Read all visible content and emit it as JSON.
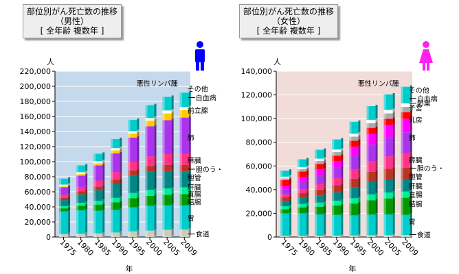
{
  "charts": [
    {
      "title_lines": [
        "部位別がん死亡数の推移",
        "（男性）",
        "[ 全年齢 複数年 ]"
      ],
      "y_unit": "人",
      "x_title": "年",
      "figure": "male",
      "figure_color": "#0000ff",
      "bg_color": "#c5d9ec",
      "ylim": [
        0,
        220000
      ],
      "y_ticks": [
        "0",
        "20,000",
        "40,000",
        "60,000",
        "80,000",
        "100,000",
        "120,000",
        "140,000",
        "160,000",
        "180,000",
        "200,000",
        "220,000"
      ],
      "labels": [
        {
          "text": "悪性リンパ腫",
          "y": 204000,
          "side": "left"
        },
        {
          "text": "その他",
          "y": 197000,
          "side": "right"
        },
        {
          "text": "白血病",
          "y": 185000,
          "side": "right",
          "leader": true
        },
        {
          "text": "前立腺",
          "y": 168000,
          "side": "right"
        },
        {
          "text": "肺",
          "y": 132000,
          "side": "right"
        },
        {
          "text": "膵臓",
          "y": 102000,
          "side": "right"
        },
        {
          "text": "胆のう・",
          "y": 90000,
          "side": "right",
          "leader": true
        },
        {
          "text": "胆管",
          "y": 79000,
          "side": "right"
        },
        {
          "text": "肝臓",
          "y": 66000,
          "side": "right"
        },
        {
          "text": "直腸",
          "y": 57000,
          "side": "right"
        },
        {
          "text": "結腸",
          "y": 47000,
          "side": "right"
        },
        {
          "text": "胃",
          "y": 25000,
          "side": "right"
        },
        {
          "text": "食道",
          "y": 4000,
          "side": "right",
          "leader": true
        }
      ]
    },
    {
      "title_lines": [
        "部位別がん死亡数の推移",
        "（女性）",
        "[ 全年齢 複数年 ]"
      ],
      "y_unit": "人",
      "x_title": "年",
      "figure": "female",
      "figure_color": "#ff22ee",
      "bg_color": "#f1dcda",
      "ylim": [
        0,
        140000
      ],
      "y_ticks": [
        "0",
        "20,000",
        "40,000",
        "60,000",
        "80,000",
        "100,000",
        "120,000",
        "140,000"
      ],
      "labels": [
        {
          "text": "悪性リンパ腫",
          "y": 130000,
          "side": "left"
        },
        {
          "text": "その他",
          "y": 124000,
          "side": "right"
        },
        {
          "text": "白血病",
          "y": 117000,
          "side": "right",
          "leader": true
        },
        {
          "text": "子宮",
          "y": 109000,
          "side": "right"
        },
        {
          "text": "卵巣",
          "y": 113000,
          "side": "right",
          "leader": true
        },
        {
          "text": "乳房",
          "y": 99000,
          "side": "right"
        },
        {
          "text": "肺",
          "y": 84000,
          "side": "right"
        },
        {
          "text": "膵臓",
          "y": 65000,
          "side": "right"
        },
        {
          "text": "胆のう・",
          "y": 58000,
          "side": "right",
          "leader": true
        },
        {
          "text": "胆管",
          "y": 51000,
          "side": "right"
        },
        {
          "text": "肝臓",
          "y": 43000,
          "side": "right"
        },
        {
          "text": "直腸",
          "y": 36000,
          "side": "right"
        },
        {
          "text": "結腸",
          "y": 28000,
          "side": "right"
        },
        {
          "text": "胃",
          "y": 13000,
          "side": "right"
        },
        {
          "text": "食道",
          "y": 2000,
          "side": "right",
          "leader": true
        }
      ]
    }
  ],
  "chart_data": [
    {
      "type": "bar",
      "stacked": true,
      "title": "部位別がん死亡数の推移（男性）[ 全年齢 複数年 ]",
      "xlabel": "年",
      "ylabel": "人",
      "ylim": [
        0,
        220000
      ],
      "grid": true,
      "categories": [
        "1975",
        "1980",
        "1985",
        "1990",
        "1995",
        "2000",
        "2005",
        "2009"
      ],
      "series": [
        {
          "name": "食道",
          "color": "#ccccbb",
          "values": [
            4000,
            4500,
            5000,
            6000,
            7500,
            8500,
            9500,
            10000
          ]
        },
        {
          "name": "胃",
          "color": "#00cccc",
          "values": [
            30000,
            31000,
            30000,
            30000,
            32000,
            33000,
            32500,
            32000
          ]
        },
        {
          "name": "結腸",
          "color": "#009900",
          "values": [
            4000,
            6000,
            8000,
            10000,
            12000,
            13000,
            14000,
            15000
          ]
        },
        {
          "name": "直腸",
          "color": "#00ee99",
          "values": [
            3000,
            4000,
            5000,
            6000,
            7000,
            8000,
            8500,
            9000
          ]
        },
        {
          "name": "肝臓",
          "color": "#008888",
          "values": [
            8000,
            11000,
            14000,
            18000,
            23000,
            24000,
            23000,
            21000
          ]
        },
        {
          "name": "胆管",
          "color": "#bb3322",
          "values": [
            3000,
            4000,
            5000,
            6000,
            7000,
            7500,
            8000,
            8500
          ]
        },
        {
          "name": "膵臓",
          "color": "#ff3388",
          "values": [
            4000,
            6000,
            8000,
            10000,
            11500,
            13000,
            14500,
            15000
          ]
        },
        {
          "name": "肺",
          "color": "#aa33ee",
          "values": [
            10000,
            15000,
            20000,
            25000,
            32000,
            40000,
            45000,
            48000
          ]
        },
        {
          "name": "前立腺",
          "color": "#ffcc00",
          "values": [
            1500,
            2000,
            3000,
            4000,
            5500,
            7500,
            9000,
            10000
          ]
        },
        {
          "name": "白血病",
          "color": "#ffffff",
          "values": [
            2000,
            2500,
            2500,
            3000,
            3000,
            3500,
            4000,
            4000
          ]
        },
        {
          "name": "その他",
          "color": "#00cccc",
          "values": [
            8000,
            9000,
            10000,
            12000,
            15000,
            17000,
            18000,
            19000
          ]
        }
      ]
    },
    {
      "type": "bar",
      "stacked": true,
      "title": "部位別がん死亡数の推移（女性）[ 全年齢 複数年 ]",
      "xlabel": "年",
      "ylabel": "人",
      "ylim": [
        0,
        140000
      ],
      "grid": true,
      "categories": [
        "1975",
        "1980",
        "1985",
        "1990",
        "1995",
        "2000",
        "2005",
        "2009"
      ],
      "series": [
        {
          "name": "食道",
          "color": "#ccccbb",
          "values": [
            1000,
            1000,
            1100,
            1200,
            1300,
            1500,
            1600,
            1700
          ]
        },
        {
          "name": "胃",
          "color": "#00cccc",
          "values": [
            19000,
            19000,
            18000,
            17500,
            17000,
            17500,
            17500,
            17000
          ]
        },
        {
          "name": "結腸",
          "color": "#009900",
          "values": [
            3500,
            5000,
            6500,
            8000,
            10000,
            12000,
            13500,
            14500
          ]
        },
        {
          "name": "直腸",
          "color": "#00ee99",
          "values": [
            2500,
            3000,
            3500,
            4000,
            4500,
            5000,
            5000,
            5200
          ]
        },
        {
          "name": "肝臓",
          "color": "#008888",
          "values": [
            4500,
            5000,
            6000,
            7000,
            9000,
            10500,
            11000,
            10500
          ]
        },
        {
          "name": "胆管",
          "color": "#bb3322",
          "values": [
            3000,
            4000,
            5000,
            6000,
            7500,
            8500,
            9000,
            9500
          ]
        },
        {
          "name": "膵臓",
          "color": "#ff3388",
          "values": [
            2500,
            3500,
            4500,
            6000,
            7500,
            9000,
            10500,
            12000
          ]
        },
        {
          "name": "肺",
          "color": "#aa33ee",
          "values": [
            4000,
            6000,
            7500,
            9000,
            12000,
            14000,
            16000,
            18000
          ]
        },
        {
          "name": "乳房",
          "color": "#ff00ff",
          "values": [
            3000,
            4000,
            5000,
            5500,
            7500,
            9000,
            10500,
            11500
          ]
        },
        {
          "name": "子宮",
          "color": "#ff0000",
          "values": [
            5000,
            4800,
            4600,
            4500,
            5000,
            5200,
            5300,
            5500
          ]
        },
        {
          "name": "卵巣",
          "color": "#aaaaaa",
          "values": [
            1500,
            2000,
            2500,
            3000,
            3500,
            4000,
            4500,
            4500
          ]
        },
        {
          "name": "白血病",
          "color": "#ffffff",
          "values": [
            1500,
            1800,
            2000,
            2200,
            2500,
            2800,
            3000,
            3000
          ]
        },
        {
          "name": "その他",
          "color": "#00cccc",
          "values": [
            5000,
            6500,
            7500,
            8500,
            10000,
            11500,
            13000,
            14000
          ]
        }
      ]
    }
  ]
}
